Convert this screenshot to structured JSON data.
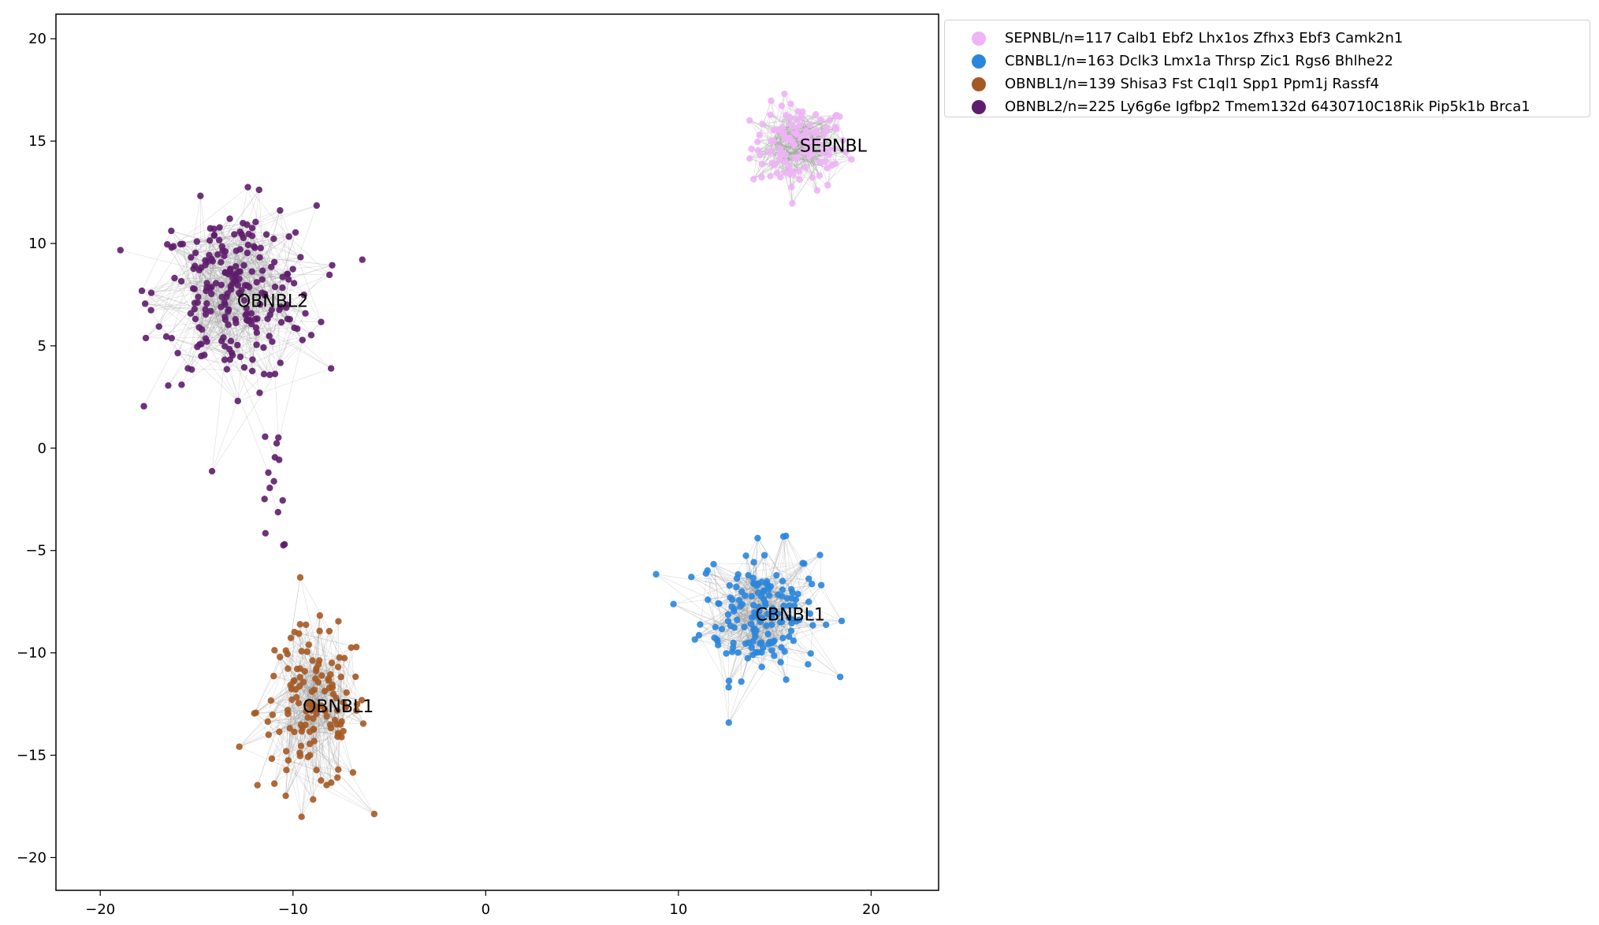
{
  "chart_data": {
    "type": "scatter",
    "title": "",
    "xlabel": "",
    "ylabel": "",
    "xlim": [
      -22.3,
      23.5
    ],
    "ylim": [
      -21.6,
      21.2
    ],
    "x_ticks": [
      -20,
      -10,
      0,
      10,
      20
    ],
    "y_ticks": [
      -20,
      -15,
      -10,
      -5,
      0,
      5,
      10,
      15,
      20
    ],
    "x_tick_labels": [
      "−20",
      "−10",
      "0",
      "10",
      "20"
    ],
    "y_tick_labels": [
      "−20",
      "−15",
      "−10",
      "−5",
      "0",
      "5",
      "10",
      "15",
      "20"
    ],
    "grid": false,
    "legend_placement": "outside-top-right",
    "edge_color": "#9a9a9a",
    "series": [
      {
        "name": "SEPNBL/n=117 Calb1 Ebf2 Lhx1os Zfhx3 Ebf3 Camk2n1",
        "color": "#f0b3f7",
        "n": 117,
        "label": "SEPNBL",
        "label_position": [
          16.3,
          14.8
        ],
        "center": [
          16.3,
          14.7
        ],
        "spread": [
          2.3,
          1.9
        ]
      },
      {
        "name": "CBNBL1/n=163 Dclk3 Lmx1a Thrsp Zic1 Rgs6 Bhlhe22",
        "color": "#2a86db",
        "n": 163,
        "label": "CBNBL1",
        "label_position": [
          14.0,
          -8.1
        ],
        "center": [
          14.2,
          -8.0
        ],
        "spread": [
          2.8,
          2.9
        ]
      },
      {
        "name": "OBNBL1/n=139 Shisa3 Fst C1ql1 Spp1 Ppm1j Rassf4",
        "color": "#a55a23",
        "n": 139,
        "label": "OBNBL1",
        "label_position": [
          -9.5,
          -12.6
        ],
        "center": [
          -9.0,
          -12.8
        ],
        "spread": [
          2.6,
          3.6
        ]
      },
      {
        "name": "OBNBL2/n=225 Ly6g6e Igfbp2 Tmem132d 6430710C18Rik Pip5k1b Brca1",
        "color": "#5e1d6c",
        "n": 225,
        "label": "OBNBL2",
        "label_position": [
          -12.9,
          7.2
        ],
        "center": [
          -13.0,
          7.5
        ],
        "spread": [
          3.8,
          3.9
        ]
      }
    ]
  }
}
